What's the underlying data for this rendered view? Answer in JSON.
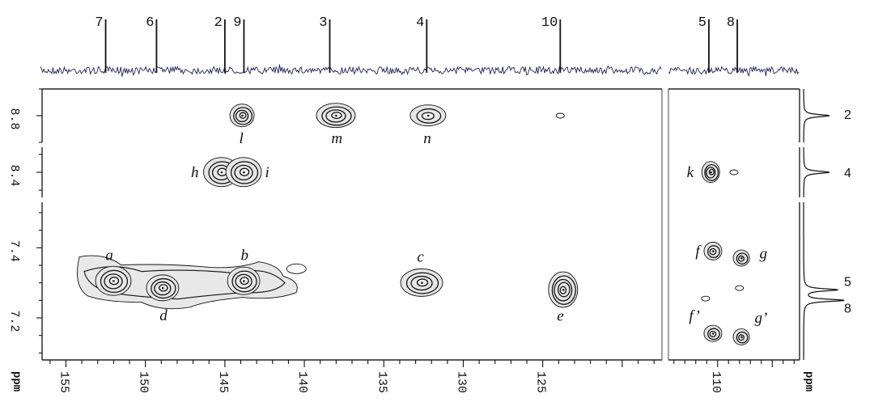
{
  "chart_data": {
    "type": "heatmap",
    "x_axis": {
      "unit_label": "ppm",
      "reversed": true,
      "segments": [
        {
          "range": [
            156.5,
            117.5
          ],
          "ticks": [
            "155",
            "150",
            "145",
            "140",
            "135",
            "130",
            "125"
          ]
        },
        {
          "range": [
            114.5,
            102.5
          ],
          "ticks": [
            "110"
          ]
        }
      ]
    },
    "y_axis": {
      "unit_label": "ppm",
      "reversed": false,
      "segments": [
        {
          "range": [
            8.75,
            8.85
          ],
          "ticks": [
            "8.8"
          ]
        },
        {
          "range": [
            8.33,
            8.47
          ],
          "ticks": [
            "8.4"
          ]
        },
        {
          "range": [
            7.08,
            7.53
          ],
          "ticks": [
            "7.4",
            "7.2"
          ]
        }
      ]
    },
    "top_spectrum_peaks": [
      {
        "label": "7",
        "x": 152.5
      },
      {
        "label": "6",
        "x": 149.3
      },
      {
        "label": "2",
        "x": 145.0
      },
      {
        "label": "9",
        "x": 143.8
      },
      {
        "label": "3",
        "x": 138.4
      },
      {
        "label": "4",
        "x": 132.3
      },
      {
        "label": "10",
        "x": 123.9
      },
      {
        "label": "5",
        "x": 110.8
      },
      {
        "label": "8",
        "x": 108.2
      }
    ],
    "right_projection_peaks": [
      {
        "label": "2",
        "y": 8.8
      },
      {
        "label": "4",
        "y": 8.4
      },
      {
        "label": "5",
        "y": 7.28
      },
      {
        "label": "8",
        "y": 7.25
      }
    ],
    "cross_peaks": [
      {
        "label": "a",
        "x": 152.0,
        "y": 7.305
      },
      {
        "label": "d",
        "x": 148.9,
        "y": 7.285
      },
      {
        "label": "b",
        "x": 143.8,
        "y": 7.305
      },
      {
        "label": "c",
        "x": 132.6,
        "y": 7.3
      },
      {
        "label": "e",
        "x": 123.7,
        "y": 7.28
      },
      {
        "label": "f",
        "x": 110.4,
        "y": 7.39
      },
      {
        "label": "g",
        "x": 107.8,
        "y": 7.37
      },
      {
        "label": "f’",
        "x": 110.4,
        "y": 7.155
      },
      {
        "label": "g’",
        "x": 107.8,
        "y": 7.145
      },
      {
        "label": "h",
        "x": 145.2,
        "y": 8.4
      },
      {
        "label": "i",
        "x": 143.8,
        "y": 8.4
      },
      {
        "label": "k",
        "x": 110.6,
        "y": 8.4
      },
      {
        "label": "l",
        "x": 143.9,
        "y": 8.8
      },
      {
        "label": "m",
        "x": 138.0,
        "y": 8.8
      },
      {
        "label": "n",
        "x": 132.2,
        "y": 8.8
      }
    ],
    "minor_peaks": [
      {
        "x": 140.5,
        "y": 7.34
      },
      {
        "x": 123.9,
        "y": 8.8
      },
      {
        "x": 108.5,
        "y": 8.4
      },
      {
        "x": 111.1,
        "y": 7.255
      },
      {
        "x": 108.0,
        "y": 7.285
      }
    ]
  }
}
